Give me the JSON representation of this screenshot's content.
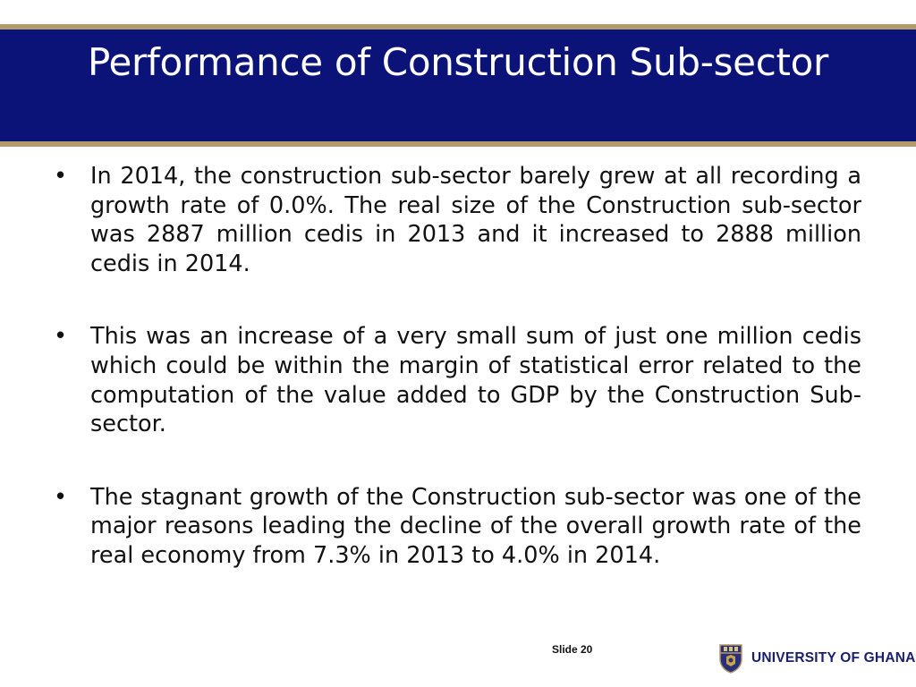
{
  "slide": {
    "title": "Performance of Construction Sub-sector",
    "bullets": [
      {
        "marker": "•",
        "text": "In 2014, the construction sub-sector barely grew at all recording a growth rate of 0.0%. The real size of the Construction sub-sector was 2887 million cedis in 2013 and it increased to 2888 million cedis in 2014."
      },
      {
        "marker": "•",
        "text": " This was an increase of a very small sum of just one million cedis which could be within the margin of statistical error related to the computation of the value added to GDP by the Construction Sub-sector."
      },
      {
        "marker": "•",
        "text": "The stagnant growth of the Construction sub-sector was one of the major reasons leading the decline of the overall growth rate of the real economy from 7.3% in 2013 to 4.0% in 2014."
      }
    ],
    "slide_number": "Slide 20"
  },
  "footer": {
    "logo_text": "UNIVERSITY OF GHANA",
    "logo_icon": "university-crest-icon"
  },
  "colors": {
    "title_band": "#0b1278",
    "gold_rule": "#b39b6b",
    "title_text": "#ffffff",
    "body_text": "#111111"
  }
}
